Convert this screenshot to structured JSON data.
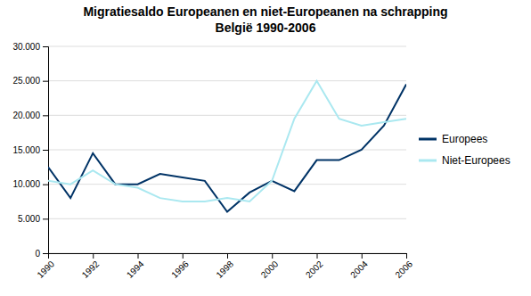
{
  "chart_data": {
    "type": "line",
    "title": "Migratiesaldo Europeanen en niet-Europeanen na schrapping",
    "subtitle": "België 1990-2006",
    "x": [
      1990,
      1991,
      1992,
      1993,
      1994,
      1995,
      1996,
      1997,
      1998,
      1999,
      2000,
      2001,
      2002,
      2003,
      2004,
      2005,
      2006
    ],
    "series": [
      {
        "name": "Europees",
        "color": "#003366",
        "values": [
          12500,
          8000,
          14500,
          10000,
          10000,
          11500,
          11000,
          10500,
          6000,
          8800,
          10500,
          9000,
          13500,
          13500,
          15000,
          18500,
          24500
        ]
      },
      {
        "name": "Niet-Europees",
        "color": "#aae8f0",
        "values": [
          10500,
          10000,
          12000,
          10000,
          9500,
          8000,
          7500,
          7500,
          8000,
          7500,
          10500,
          19500,
          25000,
          19500,
          18500,
          19000,
          19500
        ]
      }
    ],
    "xlim": [
      1990,
      2006
    ],
    "xticks": [
      1990,
      1992,
      1994,
      1996,
      1998,
      2000,
      2002,
      2004,
      2006
    ],
    "ylim": [
      0,
      30000
    ],
    "yticks": [
      0,
      {
        "value": 5000,
        "label": "5.000"
      },
      {
        "value": 10000,
        "label": "10.000"
      },
      {
        "value": 15000,
        "label": "15.000"
      },
      {
        "value": 20000,
        "label": "20.000"
      },
      {
        "value": 25000,
        "label": "25.000"
      },
      {
        "value": 30000,
        "label": "30.000"
      }
    ],
    "grid": true,
    "legend": "right"
  }
}
